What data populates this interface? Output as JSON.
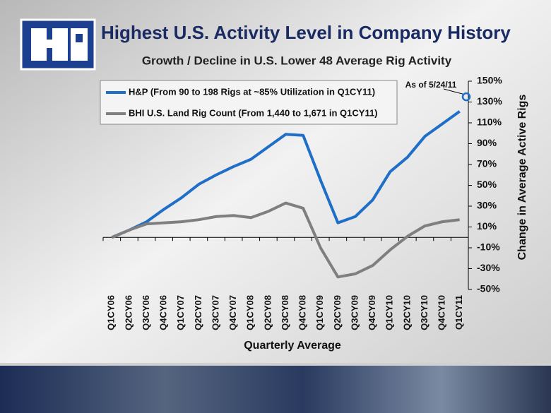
{
  "chart_data": {
    "type": "line",
    "title": "Highest U.S. Activity Level in Company History",
    "subtitle": "Growth / Decline in U.S. Lower 48 Average Rig Activity",
    "x_label": "Quarterly Average",
    "y_label": "Change in Average Active Rigs",
    "categories": [
      "Q1CY06",
      "Q2CY06",
      "Q3CY06",
      "Q4CY06",
      "Q1CY07",
      "Q2CY07",
      "Q3CY07",
      "Q4CY07",
      "Q1CY08",
      "Q2CY08",
      "Q3CY08",
      "Q4CY08",
      "Q1CY09",
      "Q2CY09",
      "Q3CY09",
      "Q4CY09",
      "Q1CY10",
      "Q2CY10",
      "Q3CY10",
      "Q4CY10",
      "Q1CY11"
    ],
    "series": [
      {
        "name": "H&P (From 90 to 198 Rigs at ~85% Utilization in Q1CY11)",
        "color": "#1f6fc8",
        "values": [
          0,
          7,
          15,
          27,
          38,
          51,
          60,
          68,
          75,
          87,
          99,
          98,
          55,
          14,
          20,
          36,
          63,
          77,
          97,
          109,
          121
        ]
      },
      {
        "name": "BHI U.S. Land Rig Count (From 1,440 to 1,671 in Q1CY11)",
        "color": "#7f7f7f",
        "values": [
          0,
          7,
          13,
          14,
          15,
          17,
          20,
          21,
          19,
          25,
          33,
          28,
          -10,
          -38,
          -35,
          -27,
          -12,
          1,
          11,
          15,
          17
        ]
      }
    ],
    "annotation": {
      "text": "As of 5/24/11",
      "value": 135
    },
    "ylim": [
      -50,
      150
    ],
    "yticks": [
      {
        "value": 150,
        "label": "150%"
      },
      {
        "value": 130,
        "label": "130%"
      },
      {
        "value": 110,
        "label": "110%"
      },
      {
        "value": 90,
        "label": "90%"
      },
      {
        "value": 70,
        "label": "70%"
      },
      {
        "value": 50,
        "label": "50%"
      },
      {
        "value": 30,
        "label": "30%"
      },
      {
        "value": 10,
        "label": "10%"
      },
      {
        "value": -10,
        "label": "-10%"
      },
      {
        "value": -30,
        "label": "-30%"
      },
      {
        "value": -50,
        "label": "-50%"
      }
    ],
    "grid": false,
    "legend": "top-left"
  }
}
